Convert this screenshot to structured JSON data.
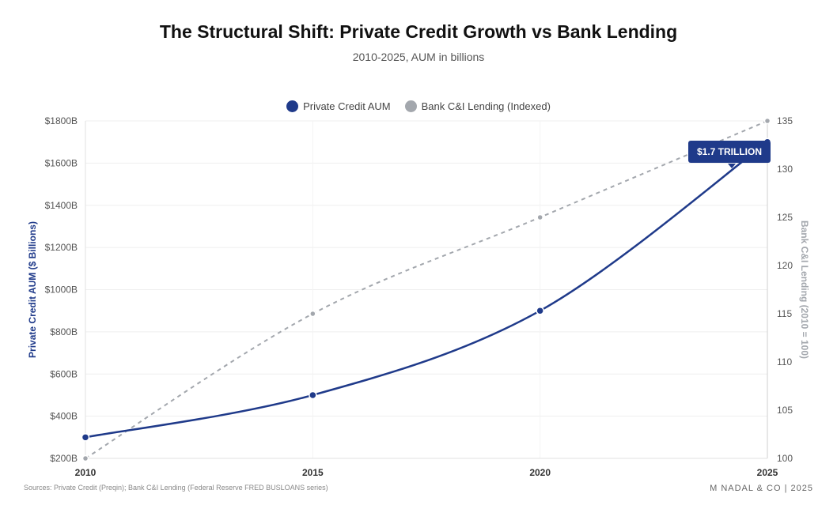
{
  "chart_data": {
    "type": "line",
    "title": "The Structural Shift: Private Credit Growth vs Bank Lending",
    "subtitle": "2010-2025, AUM in billions",
    "x": [
      2010,
      2015,
      2020,
      2025
    ],
    "x_tick_labels": [
      "2010",
      "2015",
      "2020",
      "2025"
    ],
    "series": [
      {
        "name": "Private Credit AUM",
        "axis": "left",
        "values": [
          300,
          500,
          900,
          1700
        ],
        "color": "#1f3a8a",
        "style": "solid"
      },
      {
        "name": "Bank C&I Lending (Indexed)",
        "axis": "right",
        "values": [
          100,
          115,
          125,
          135
        ],
        "color": "#a3a7ad",
        "style": "dashed"
      }
    ],
    "y_left": {
      "label": "Private Credit AUM ($ Billions)",
      "min": 200,
      "max": 1800,
      "ticks": [
        200,
        400,
        600,
        800,
        1000,
        1200,
        1400,
        1600,
        1800
      ],
      "tick_labels": [
        "$200B",
        "$400B",
        "$600B",
        "$800B",
        "$1000B",
        "$1200B",
        "$1400B",
        "$1600B",
        "$1800B"
      ],
      "color": "#1f3a8a"
    },
    "y_right": {
      "label": "Bank C&I Lending (2010 = 100)",
      "min": 100,
      "max": 135,
      "ticks": [
        100,
        105,
        110,
        115,
        120,
        125,
        130,
        135
      ],
      "tick_labels": [
        "100",
        "105",
        "110",
        "115",
        "120",
        "125",
        "130",
        "135"
      ],
      "color": "#a3a7ad"
    },
    "legend_position": "top-center",
    "grid": true,
    "annotation": {
      "text": "$1.7 TRILLION",
      "x": 2025,
      "series": "Private Credit AUM"
    }
  },
  "legend": {
    "items": [
      {
        "label": "Private Credit AUM",
        "color": "#1f3a8a"
      },
      {
        "label": "Bank C&I Lending (Indexed)",
        "color": "#a3a7ad"
      }
    ]
  },
  "footer": {
    "source": "Sources: Private Credit (Preqin); Bank C&I Lending (Federal Reserve FRED BUSLOANS series)",
    "brand": "M NADAL & CO | 2025"
  }
}
